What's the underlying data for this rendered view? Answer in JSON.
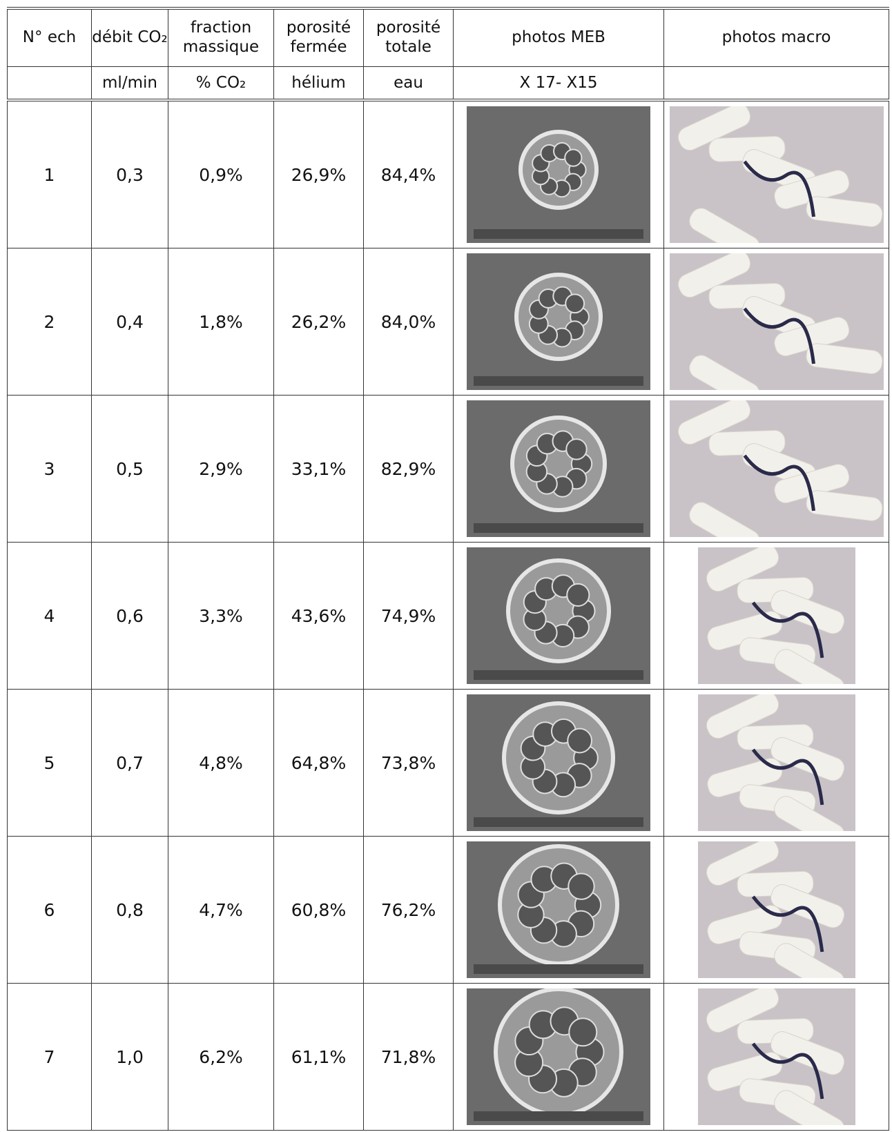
{
  "table": {
    "header": [
      [
        "N° ech",
        "débit CO₂",
        "fraction massique",
        "porosité fermée",
        "porosité totale",
        "photos MEB",
        "photos macro"
      ],
      [
        "ml/min",
        "% CO₂",
        "hélium",
        "eau",
        "X 17- X15"
      ]
    ],
    "rows": [
      [
        "1",
        "0,3",
        "0,9%",
        "26,9%",
        "84,4%"
      ],
      [
        "2",
        "0,4",
        "1,8%",
        "26,2%",
        "84,0%"
      ],
      [
        "3",
        "0,5",
        "2,9%",
        "33,1%",
        "82,9%"
      ],
      [
        "4",
        "0,6",
        "3,3%",
        "43,6%",
        "74,9%"
      ],
      [
        "5",
        "0,7",
        "4,8%",
        "64,8%",
        "73,8%"
      ],
      [
        "6",
        "0,8",
        "4,7%",
        "60,8%",
        "76,2%"
      ],
      [
        "7",
        "1,0",
        "6,2%",
        "61,1%",
        "71,8%"
      ]
    ]
  }
}
